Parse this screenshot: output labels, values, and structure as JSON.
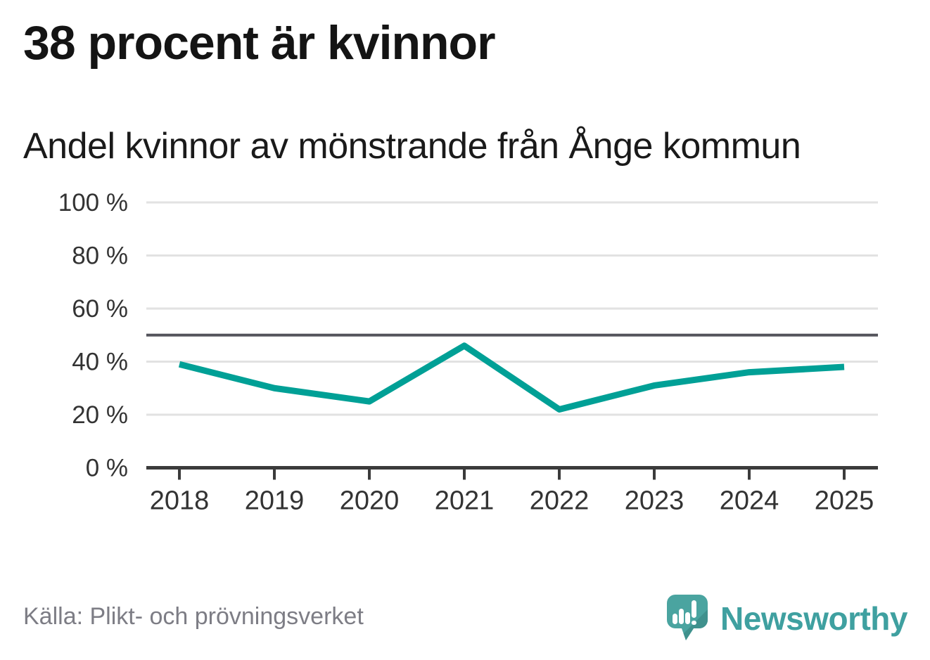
{
  "header": {
    "title": "38 procent är kvinnor",
    "subtitle": "Andel kvinnor av mönstrande från Ånge kommun"
  },
  "chart_data": {
    "type": "line",
    "title": "38 procent är kvinnor",
    "subtitle": "Andel kvinnor av mönstrande från Ånge kommun",
    "categories": [
      "2018",
      "2019",
      "2020",
      "2021",
      "2022",
      "2023",
      "2024",
      "2025"
    ],
    "series": [
      {
        "name": "Andel kvinnor av mönstrande",
        "values": [
          39,
          30,
          25,
          46,
          22,
          31,
          36,
          38
        ]
      }
    ],
    "unit": "%",
    "ylim": [
      0,
      100
    ],
    "yticks": [
      0,
      20,
      40,
      60,
      80,
      100
    ],
    "ytick_suffix": " %",
    "reference_line": 50,
    "grid": true,
    "legend_position": "none",
    "colors": {
      "line": "#00a096",
      "grid": "#e2e2e2",
      "reference": "#54545c",
      "axis": "#3b3b3b",
      "tick_label": "#333333"
    }
  },
  "footer": {
    "source": "Källa: Plikt- och prövningsverket",
    "brand": "Newsworthy",
    "brand_colors": {
      "bubble": "#4aa4a0",
      "bubble_shade": "#3f918d",
      "glyph": "#ffffff",
      "wordmark": "#3fa0a0"
    }
  }
}
